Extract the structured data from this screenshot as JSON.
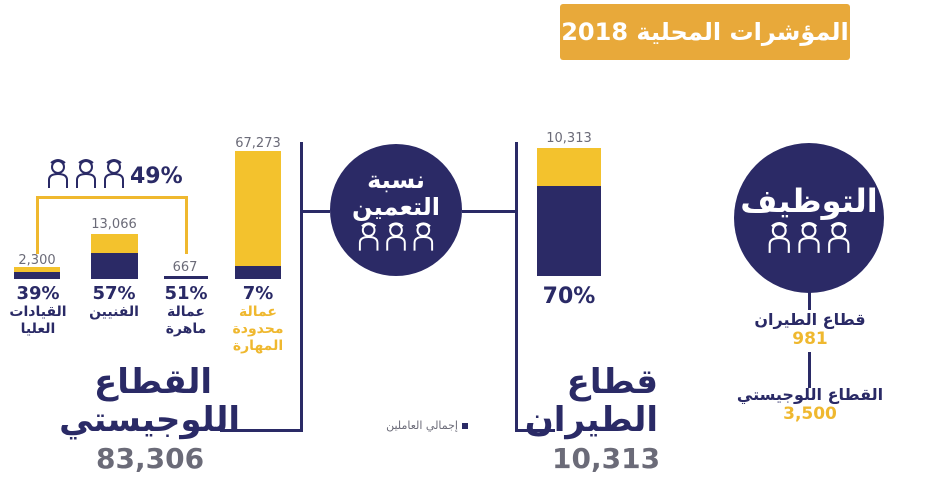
{
  "header": {
    "title": "المؤشرات المحلية 2018"
  },
  "colors": {
    "navy": "#2b2a66",
    "gold": "#f3c22d",
    "banner": "#e8a93a",
    "gray": "#6b6b78"
  },
  "logistics": {
    "title_line1": "القطاع",
    "title_line2": "اللوجيستي",
    "total": "83,306",
    "combined_pct": "49%",
    "groups": [
      {
        "label_line1": "القيادات",
        "label_line2": "العليا",
        "pct": "39%",
        "count": "2,300",
        "fill_pct": 39
      },
      {
        "label_line1": "الفنيين",
        "label_line2": "",
        "pct": "57%",
        "count": "13,066",
        "fill_pct": 57
      },
      {
        "label_line1": "عمالة",
        "label_line2": "ماهرة",
        "pct": "51%",
        "count": "667",
        "fill_pct": 51
      },
      {
        "label_line1": "عمالة",
        "label_line2": "محدودة",
        "label_line3": "المهارة",
        "pct": "7%",
        "count": "67,273",
        "fill_pct": 7
      }
    ]
  },
  "saudization": {
    "line1": "نسبة",
    "line2": "التعمين",
    "icon": "people-icon"
  },
  "aviation": {
    "title_line1": "قطاع",
    "title_line2": "الطيران",
    "total": "10,313",
    "count": "10,313",
    "pct": "70%",
    "fill_pct": 70
  },
  "employment": {
    "title": "التوظيف",
    "aviation_label": "قطاع الطيران",
    "aviation_value": "981",
    "logistics_label": "القطاع اللوجيستي",
    "logistics_value": "3,500"
  },
  "legend": {
    "text": "إجمالي العاملين"
  }
}
